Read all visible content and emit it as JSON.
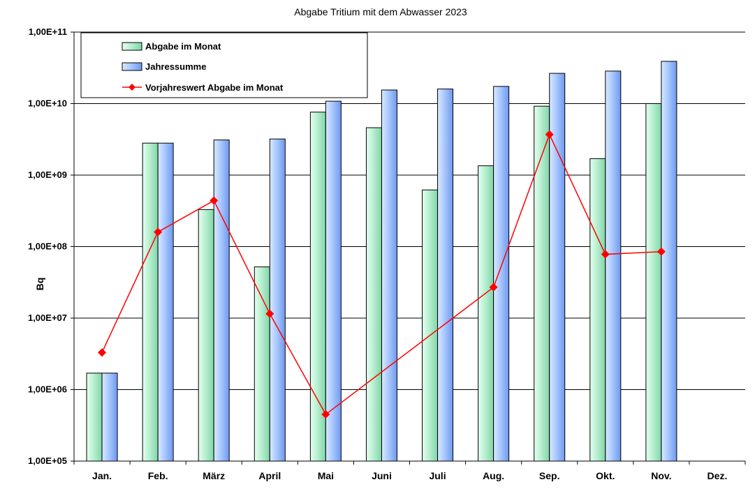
{
  "chart_data": {
    "type": "bar",
    "title": "Abgabe Tritium mit dem Abwasser 2023",
    "xlabel": "",
    "ylabel": "Bq",
    "yscale": "log",
    "ylim": [
      100000,
      100000000000
    ],
    "y_ticks": [
      "1,00E+05",
      "1,00E+06",
      "1,00E+07",
      "1,00E+08",
      "1,00E+09",
      "1,00E+10",
      "1,00E+11"
    ],
    "categories": [
      "Jan.",
      "Feb.",
      "März",
      "April",
      "Mai",
      "Juni",
      "Juli",
      "Aug.",
      "Sep.",
      "Okt.",
      "Nov.",
      "Dez."
    ],
    "grid": true,
    "legend_position": "top-left",
    "series": [
      {
        "name": "Abgabe im Monat",
        "kind": "bar",
        "color": "#b9f0d2",
        "values": [
          1700000,
          2800000000,
          330000000,
          52000000,
          7600000000,
          4600000000,
          620000000,
          1350000000,
          9200000000,
          1700000000,
          10000000000,
          null
        ]
      },
      {
        "name": "Jahressumme",
        "kind": "bar",
        "color": "#a9c9ff",
        "values": [
          1700000,
          2800000000,
          3100000000,
          3200000000,
          10800000000,
          15500000000,
          16000000000,
          17400000000,
          26500000000,
          28500000000,
          39000000000,
          null
        ]
      },
      {
        "name": "Vorjahreswert Abgabe im Monat",
        "kind": "line",
        "color": "#ff0000",
        "values": [
          3300000,
          160000000,
          440000000,
          11500000,
          450000,
          null,
          null,
          27000000,
          3700000000,
          78000000,
          85000000,
          null
        ]
      }
    ]
  }
}
